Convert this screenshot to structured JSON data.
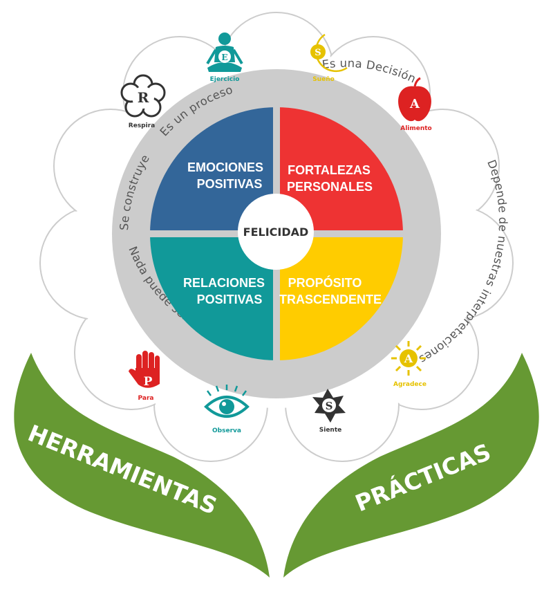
{
  "center": {
    "label": "FELICIDAD"
  },
  "quadrants": [
    {
      "line1": "EMOCIONES",
      "line2": "POSITIVAS",
      "color": "#336699"
    },
    {
      "line1": "FORTALEZAS",
      "line2": "PERSONALES",
      "color": "#EE3333"
    },
    {
      "line1": "RELACIONES",
      "line2": "POSITIVAS",
      "color": "#119999"
    },
    {
      "line1": "PROPÓSITO",
      "line2": "TRASCENDENTE",
      "color": "#FFCC00"
    }
  ],
  "ring": {
    "color": "#CCCCCC",
    "phrases": [
      "Es un proceso",
      "Es una Decisión",
      "Depende de nuestras interpretaciones",
      "Nada puede ser el todo",
      "Se construye"
    ]
  },
  "tools": [
    {
      "letter": "E",
      "label": "Ejercicio",
      "icon": "meditation-icon",
      "color": "#119999"
    },
    {
      "letter": "S",
      "label": "Sueño",
      "icon": "moon-icon",
      "color": "#E6C200"
    },
    {
      "letter": "A",
      "label": "Alimento",
      "icon": "apple-icon",
      "color": "#DD2222"
    },
    {
      "letter": "A",
      "label": "Agradece",
      "icon": "sun-icon",
      "color": "#E6C200"
    },
    {
      "letter": "S",
      "label": "Siente",
      "icon": "star-icon",
      "color": "#333333"
    },
    {
      "letter": "",
      "label": "Observa",
      "icon": "eye-icon",
      "color": "#119999"
    },
    {
      "letter": "P",
      "label": "Para",
      "icon": "hand-icon",
      "color": "#DD2222"
    },
    {
      "letter": "R",
      "label": "Respira",
      "icon": "flower-icon",
      "color": "#333333"
    }
  ],
  "leaves": {
    "left": "HERRAMIENTAS",
    "right": "PRÁCTICAS",
    "color": "#669933"
  }
}
